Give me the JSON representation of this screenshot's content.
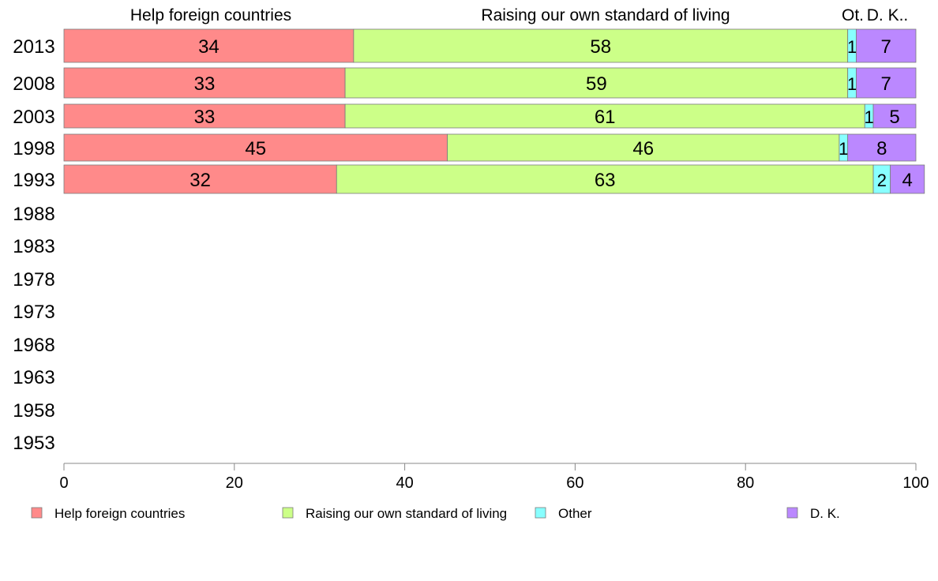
{
  "chart_data": {
    "type": "bar",
    "orientation": "horizontal",
    "stacked": true,
    "categories": [
      "2013",
      "2008",
      "2003",
      "1998",
      "1993",
      "1988",
      "1983",
      "1978",
      "1973",
      "1968",
      "1963",
      "1958",
      "1953"
    ],
    "series": [
      {
        "name": "Help foreign countries",
        "color": "#ff8a8a",
        "values": [
          34,
          33,
          33,
          45,
          32,
          null,
          null,
          null,
          null,
          null,
          null,
          null,
          null
        ]
      },
      {
        "name": "Raising our own standard of living",
        "color": "#ccff88",
        "values": [
          58,
          59,
          61,
          46,
          63,
          null,
          null,
          null,
          null,
          null,
          null,
          null,
          null
        ]
      },
      {
        "name": "Other",
        "color": "#88ffff",
        "values": [
          1,
          1,
          1,
          1,
          2,
          null,
          null,
          null,
          null,
          null,
          null,
          null,
          null
        ]
      },
      {
        "name": "D. K.",
        "color": "#bb88ff",
        "values": [
          7,
          7,
          5,
          8,
          4,
          null,
          null,
          null,
          null,
          null,
          null,
          null,
          null
        ]
      }
    ],
    "top_labels": [
      "Help foreign countries",
      "Raising our own standard of living",
      "Ot.",
      "D. K.."
    ],
    "xlim": [
      0,
      100
    ],
    "xticks": [
      "0",
      "20",
      "40",
      "60",
      "80",
      "100"
    ],
    "grid": false,
    "legend_position": "bottom"
  }
}
